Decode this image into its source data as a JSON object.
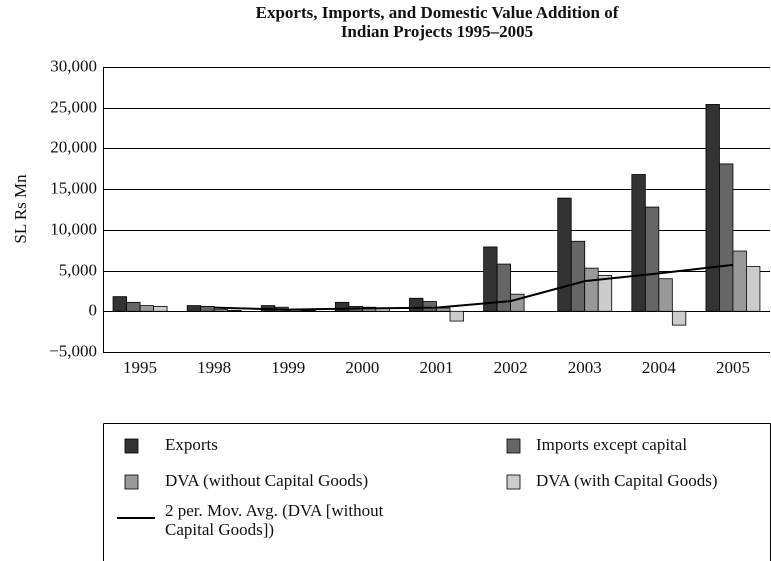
{
  "chart_data": {
    "type": "bar",
    "title": [
      "Exports, Imports, and Domestic Value Addition of",
      "Indian Projects 1995–2005"
    ],
    "y_label": "SL Rs Mn",
    "categories": [
      "1995",
      "1998",
      "1999",
      "2000",
      "2001",
      "2002",
      "2003",
      "2004",
      "2005"
    ],
    "series": [
      {
        "name": "Exports",
        "type": "bar",
        "color": "#333333",
        "values": [
          1800,
          700,
          700,
          1100,
          1600,
          7900,
          13900,
          16800,
          25400
        ]
      },
      {
        "name": "Imports except capital",
        "type": "bar",
        "color": "#666666",
        "values": [
          1100,
          600,
          500,
          600,
          1200,
          5800,
          8600,
          12800,
          18100
        ]
      },
      {
        "name": "DVA (without Capital Goods)",
        "type": "bar",
        "color": "#999999",
        "values": [
          700,
          200,
          200,
          500,
          400,
          2100,
          5300,
          4000,
          7400
        ]
      },
      {
        "name": "DVA (with Capital Goods)",
        "type": "bar",
        "color": "#cccccc",
        "values": [
          600,
          100,
          100,
          400,
          -1200,
          0,
          4400,
          -1700,
          5500
        ]
      },
      {
        "name": "2 per. Mov. Avg. (DVA [without Capital Goods])",
        "type": "line",
        "color": "#000000",
        "values": [
          null,
          450,
          200,
          350,
          450,
          1250,
          3700,
          4650,
          5700
        ]
      }
    ],
    "ylim": [
      -5000,
      30000
    ],
    "yticks": [
      {
        "value": -5000,
        "label": "−5,000"
      },
      0,
      {
        "value": 5000,
        "label": "5,000"
      },
      {
        "value": 10000,
        "label": "10,000"
      },
      {
        "value": 15000,
        "label": "15,000"
      },
      {
        "value": 20000,
        "label": "20,000"
      },
      {
        "value": 25000,
        "label": "25,000"
      },
      {
        "value": 30000,
        "label": "30,000"
      }
    ],
    "grid": true
  }
}
